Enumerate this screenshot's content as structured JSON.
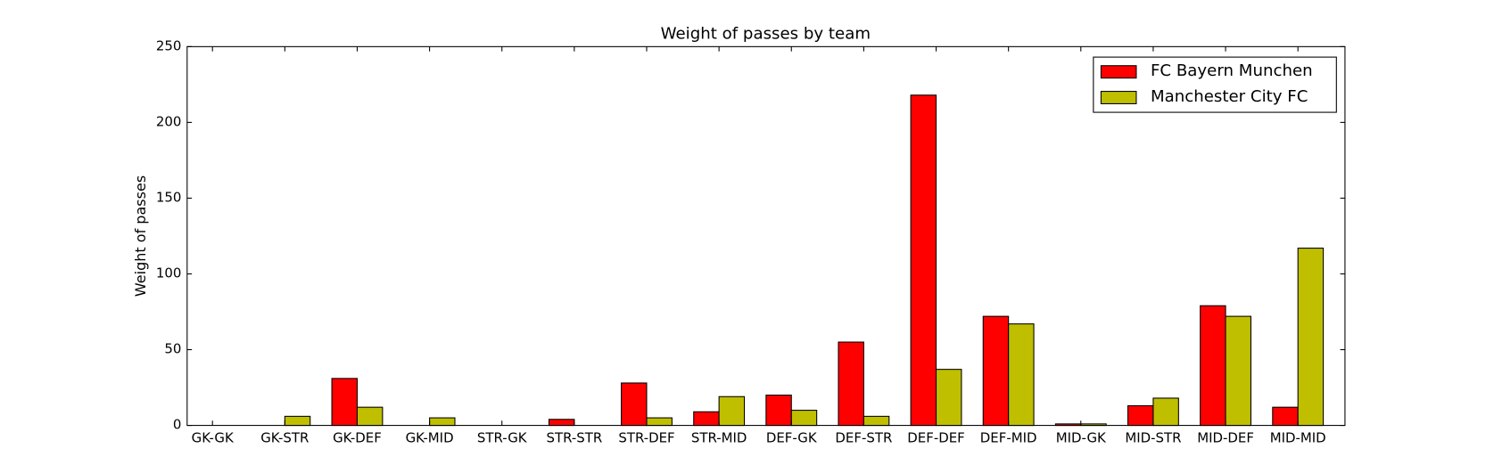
{
  "chart_data": {
    "type": "bar",
    "title": "Weight of passes by team",
    "y_label": "Weight of passes",
    "categories": [
      "GK-GK",
      "GK-STR",
      "GK-DEF",
      "GK-MID",
      "STR-GK",
      "STR-STR",
      "STR-DEF",
      "STR-MID",
      "DEF-GK",
      "DEF-STR",
      "DEF-DEF",
      "DEF-MID",
      "MID-GK",
      "MID-STR",
      "MID-DEF",
      "MID-MID"
    ],
    "series": [
      {
        "name": "FC Bayern Munchen",
        "color": "#ff0000",
        "values": [
          0,
          0,
          31,
          0,
          0,
          4,
          28,
          9,
          20,
          55,
          218,
          72,
          1,
          13,
          79,
          12
        ]
      },
      {
        "name": "Manchester City FC",
        "color": "#bfbf00",
        "values": [
          0,
          6,
          12,
          5,
          0,
          0,
          5,
          19,
          10,
          6,
          37,
          67,
          1,
          18,
          72,
          117
        ]
      }
    ],
    "ylim": [
      0,
      250
    ],
    "yticks": [
      0,
      50,
      100,
      150,
      200,
      250
    ],
    "legend": "upper right"
  }
}
